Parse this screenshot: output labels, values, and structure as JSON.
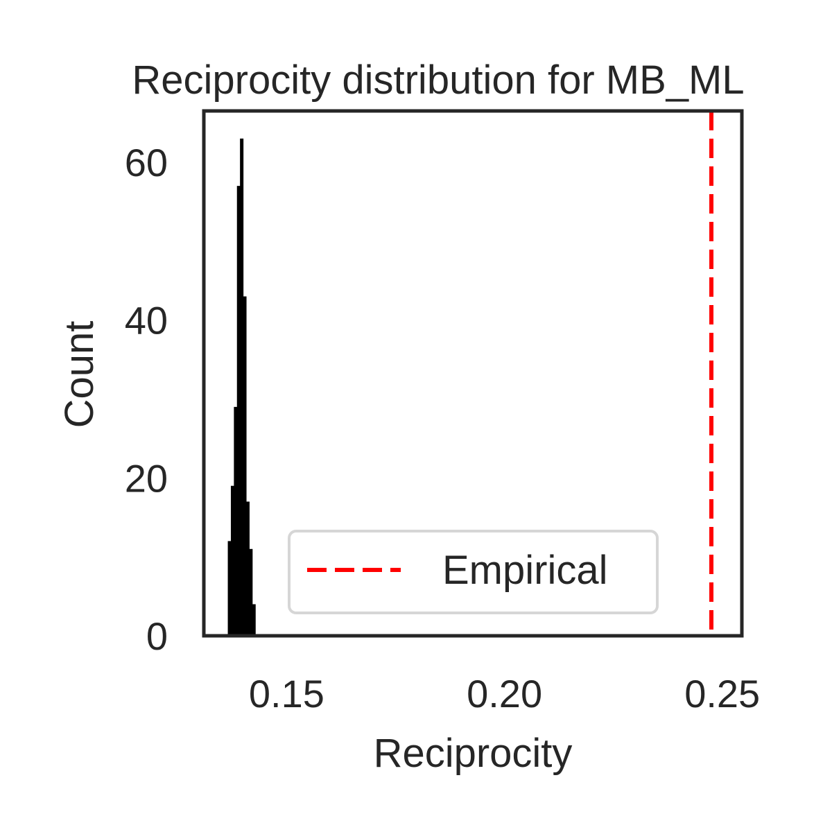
{
  "chart_data": {
    "type": "bar",
    "title": "Reciprocity distribution for MB_ML",
    "xlabel": "Reciprocity",
    "ylabel": "Count",
    "xlim": [
      0.131,
      0.2545
    ],
    "ylim": [
      0,
      66.5
    ],
    "xticks": [
      {
        "value": 0.15,
        "label": "0.15"
      },
      {
        "value": 0.2,
        "label": "0.20"
      },
      {
        "value": 0.25,
        "label": "0.25"
      }
    ],
    "yticks": [
      {
        "value": 0,
        "label": "0"
      },
      {
        "value": 20,
        "label": "20"
      },
      {
        "value": 40,
        "label": "40"
      },
      {
        "value": 60,
        "label": "60"
      }
    ],
    "histogram": {
      "name": "",
      "color": "#000000",
      "bins": [
        {
          "x0": 0.1365,
          "x1": 0.1372,
          "count": 12
        },
        {
          "x0": 0.1372,
          "x1": 0.1379,
          "count": 19
        },
        {
          "x0": 0.1379,
          "x1": 0.1386,
          "count": 29
        },
        {
          "x0": 0.1386,
          "x1": 0.1393,
          "count": 57
        },
        {
          "x0": 0.1393,
          "x1": 0.14,
          "count": 63
        },
        {
          "x0": 0.14,
          "x1": 0.1407,
          "count": 43
        },
        {
          "x0": 0.1407,
          "x1": 0.1414,
          "count": 17
        },
        {
          "x0": 0.1414,
          "x1": 0.1421,
          "count": 11
        },
        {
          "x0": 0.1421,
          "x1": 0.1428,
          "count": 4
        }
      ]
    },
    "reference_line": {
      "name": "Empirical",
      "x": 0.2475,
      "color": "#ff0000",
      "style": "dashed"
    },
    "legend": {
      "position": "lower-center",
      "entries": [
        "Empirical"
      ]
    },
    "grid": false
  }
}
